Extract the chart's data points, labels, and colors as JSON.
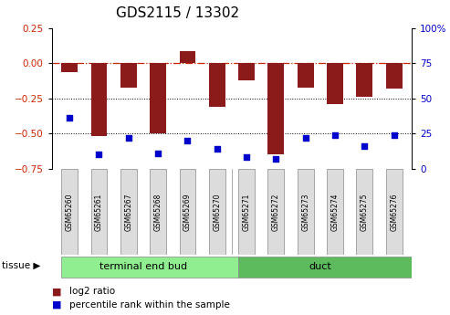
{
  "title": "GDS2115 / 13302",
  "samples": [
    "GSM65260",
    "GSM65261",
    "GSM65267",
    "GSM65268",
    "GSM65269",
    "GSM65270",
    "GSM65271",
    "GSM65272",
    "GSM65273",
    "GSM65274",
    "GSM65275",
    "GSM65276"
  ],
  "log2_ratio": [
    -0.06,
    -0.52,
    -0.17,
    -0.5,
    0.09,
    -0.31,
    -0.12,
    -0.65,
    -0.17,
    -0.29,
    -0.24,
    -0.18
  ],
  "percentile_rank": [
    36,
    10,
    22,
    11,
    20,
    14,
    8,
    7,
    22,
    24,
    16,
    24
  ],
  "groups": [
    {
      "label": "terminal end bud",
      "start": 0,
      "end": 6,
      "color": "#90EE90"
    },
    {
      "label": "duct",
      "start": 6,
      "end": 12,
      "color": "#5DBB5D"
    }
  ],
  "group_label": "tissue",
  "bar_color": "#8B1A1A",
  "dot_color": "#0000CC",
  "ylim_left": [
    -0.75,
    0.25
  ],
  "ylim_right": [
    0,
    100
  ],
  "yticks_left": [
    0.25,
    0.0,
    -0.25,
    -0.5,
    -0.75
  ],
  "yticks_right": [
    100,
    75,
    50,
    25,
    0
  ],
  "dotted_lines": [
    -0.25,
    -0.5
  ],
  "legend_red": "log2 ratio",
  "legend_blue": "percentile rank within the sample",
  "background_color": "#ffffff",
  "bar_width": 0.55,
  "label_fontsize": 5.5,
  "group_fontsize": 8,
  "tick_fontsize": 7.5,
  "title_fontsize": 11
}
